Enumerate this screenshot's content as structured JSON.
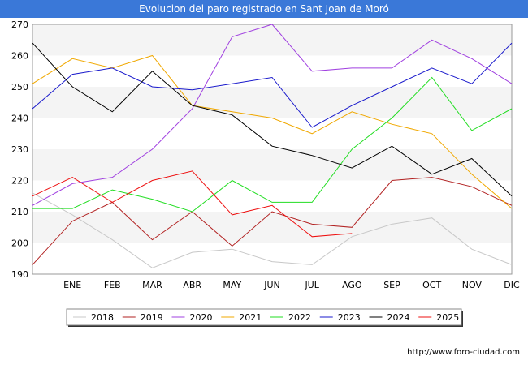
{
  "header": {
    "title": "Evolucion del paro registrado en Sant Joan de Moró"
  },
  "footer": {
    "url": "http://www.foro-ciudad.com"
  },
  "chart_data": {
    "type": "line",
    "categories": [
      "",
      "ENE",
      "FEB",
      "MAR",
      "ABR",
      "MAY",
      "JUN",
      "JUL",
      "AGO",
      "SEP",
      "OCT",
      "NOV",
      "DIC"
    ],
    "ylim": [
      190,
      270
    ],
    "yticks": [
      190,
      200,
      210,
      220,
      230,
      240,
      250,
      260,
      270
    ],
    "grid": "horizontal bands",
    "legend": "bottom",
    "series": [
      {
        "name": "2018",
        "color": "#c8c8c8",
        "values": [
          216,
          209,
          201,
          192,
          197,
          198,
          194,
          193,
          202,
          206,
          208,
          198,
          193
        ]
      },
      {
        "name": "2019",
        "color": "#b22222",
        "values": [
          193,
          207,
          213,
          201,
          210,
          199,
          210,
          206,
          205,
          220,
          221,
          218,
          212
        ]
      },
      {
        "name": "2020",
        "color": "#a040e0",
        "values": [
          212,
          219,
          221,
          230,
          243,
          266,
          270,
          255,
          256,
          256,
          265,
          259,
          251
        ]
      },
      {
        "name": "2021",
        "color": "#f0a800",
        "values": [
          251,
          259,
          256,
          260,
          244,
          242,
          240,
          235,
          242,
          238,
          235,
          222,
          211
        ]
      },
      {
        "name": "2022",
        "color": "#22dd22",
        "values": [
          211,
          211,
          217,
          214,
          210,
          220,
          213,
          213,
          230,
          240,
          253,
          236,
          243
        ]
      },
      {
        "name": "2023",
        "color": "#1a1acc",
        "values": [
          243,
          254,
          256,
          250,
          249,
          251,
          253,
          237,
          244,
          250,
          256,
          251,
          264
        ]
      },
      {
        "name": "2024",
        "color": "#000000",
        "values": [
          264,
          250,
          242,
          255,
          244,
          241,
          231,
          228,
          224,
          231,
          222,
          227,
          215
        ]
      },
      {
        "name": "2025",
        "color": "#ee1111",
        "values": [
          215,
          221,
          213,
          220,
          223,
          209,
          212,
          202,
          203,
          null,
          null,
          null,
          null
        ]
      }
    ]
  }
}
